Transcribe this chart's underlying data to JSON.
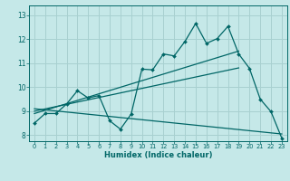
{
  "title": "",
  "xlabel": "Humidex (Indice chaleur)",
  "background_color": "#c5e8e8",
  "grid_color": "#a8d0d0",
  "line_color": "#006666",
  "xlim": [
    -0.5,
    23.5
  ],
  "ylim": [
    7.75,
    13.4
  ],
  "xticks": [
    0,
    1,
    2,
    3,
    4,
    5,
    6,
    7,
    8,
    9,
    10,
    11,
    12,
    13,
    14,
    15,
    16,
    17,
    18,
    19,
    20,
    21,
    22,
    23
  ],
  "yticks": [
    8,
    9,
    10,
    11,
    12,
    13
  ],
  "line_main": {
    "x": [
      0,
      1,
      2,
      3,
      4,
      5,
      6,
      7,
      8,
      9,
      10,
      11,
      12,
      13,
      14,
      15,
      16,
      17,
      18,
      19,
      20,
      21,
      22,
      23
    ],
    "y": [
      8.5,
      8.9,
      8.9,
      9.3,
      9.85,
      9.55,
      9.65,
      8.6,
      8.25,
      8.88,
      10.75,
      10.72,
      11.38,
      11.3,
      11.9,
      12.65,
      11.82,
      12.02,
      12.53,
      11.38,
      10.78,
      9.5,
      8.98,
      7.88
    ]
  },
  "line_trend1": {
    "x": [
      0,
      19
    ],
    "y": [
      8.9,
      11.5
    ]
  },
  "line_trend2": {
    "x": [
      0,
      19
    ],
    "y": [
      9.0,
      10.8
    ]
  },
  "line_trend3": {
    "x": [
      0,
      23
    ],
    "y": [
      9.1,
      8.05
    ]
  }
}
